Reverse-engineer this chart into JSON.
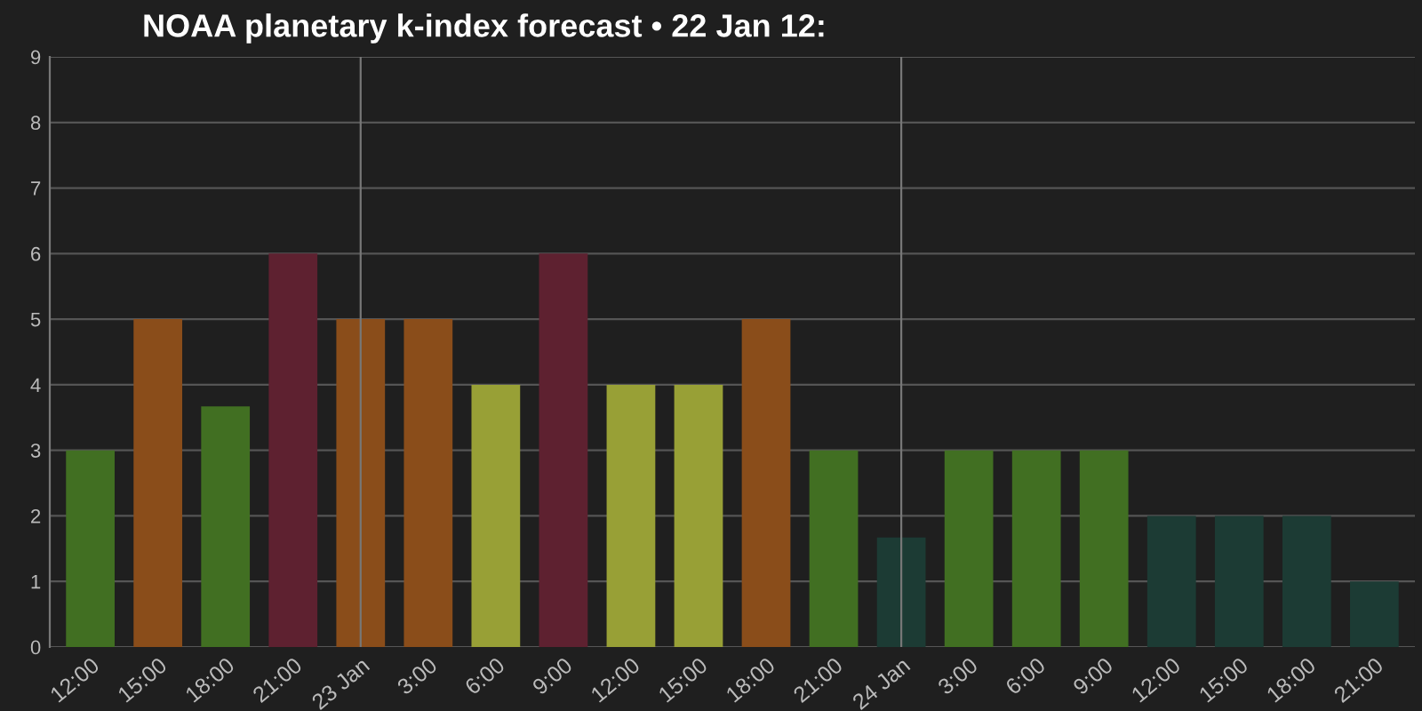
{
  "chart_data": {
    "type": "bar",
    "title": "NOAA planetary k-index forecast • 22 Jan 12:",
    "categories": [
      "12:00",
      "15:00",
      "18:00",
      "21:00",
      "23 Jan",
      "3:00",
      "6:00",
      "9:00",
      "12:00",
      "15:00",
      "18:00",
      "21:00",
      "24 Jan",
      "3:00",
      "6:00",
      "9:00",
      "12:00",
      "15:00",
      "18:00",
      "21:00"
    ],
    "values": [
      3,
      5,
      3.67,
      6,
      5,
      5,
      4,
      6,
      4,
      4,
      5,
      3,
      1.67,
      3,
      3,
      3,
      2,
      2,
      2,
      1
    ],
    "colors": [
      "#416f22",
      "#8a4d1a",
      "#416f22",
      "#5e2130",
      "#8a4d1a",
      "#8a4d1a",
      "#98a036",
      "#5e2130",
      "#98a036",
      "#98a036",
      "#8a4d1a",
      "#416f22",
      "#1c3b34",
      "#416f22",
      "#416f22",
      "#416f22",
      "#1c3b34",
      "#1c3b34",
      "#1c3b34",
      "#1c3b34"
    ],
    "ylim": [
      0,
      9
    ],
    "yticks": [
      0,
      1,
      2,
      3,
      4,
      5,
      6,
      7,
      8,
      9
    ],
    "grid": "y",
    "ref_lines": [
      {
        "axis": "x",
        "value": "23 Jan",
        "color": "#777777"
      },
      {
        "axis": "x",
        "value": "24 Jan",
        "color": "#777777"
      }
    ]
  }
}
